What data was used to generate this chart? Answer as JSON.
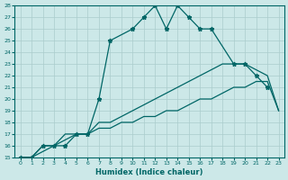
{
  "xlabel": "Humidex (Indice chaleur)",
  "background_color": "#cce8e8",
  "grid_color": "#aacccc",
  "line_color": "#006666",
  "xlim": [
    -0.5,
    23.5
  ],
  "ylim": [
    15,
    28
  ],
  "xticks": [
    0,
    1,
    2,
    3,
    4,
    5,
    6,
    7,
    8,
    9,
    10,
    11,
    12,
    13,
    14,
    15,
    16,
    17,
    18,
    19,
    20,
    21,
    22,
    23
  ],
  "yticks": [
    15,
    16,
    17,
    18,
    19,
    20,
    21,
    22,
    23,
    24,
    25,
    26,
    27,
    28
  ],
  "series": [
    {
      "x": [
        0,
        1,
        2,
        3,
        4,
        5,
        6,
        7,
        8,
        10,
        11,
        12,
        13,
        14,
        15,
        16,
        17,
        19,
        20,
        21,
        22
      ],
      "y": [
        15,
        15,
        16,
        16,
        16,
        17,
        17,
        20,
        25,
        26,
        27,
        28,
        26,
        28,
        27,
        26,
        26,
        23,
        23,
        22,
        21
      ],
      "marker": "*",
      "linestyle": "-",
      "linewidth": 0.9
    },
    {
      "x": [
        0,
        1,
        2,
        3,
        4,
        5,
        6,
        7,
        8,
        9,
        10,
        11,
        12,
        13,
        14,
        15,
        16,
        17,
        18,
        19,
        20,
        21,
        22,
        23
      ],
      "y": [
        15,
        15,
        16,
        16,
        17,
        17,
        17,
        18,
        18,
        18.5,
        19,
        19.5,
        20,
        20.5,
        21,
        21.5,
        22,
        22.5,
        23,
        23,
        23,
        22.5,
        22,
        19
      ],
      "marker": null,
      "linestyle": "-",
      "linewidth": 0.9
    },
    {
      "x": [
        0,
        1,
        2,
        3,
        4,
        5,
        6,
        7,
        8,
        9,
        10,
        11,
        12,
        13,
        14,
        15,
        16,
        17,
        18,
        19,
        20,
        21,
        22,
        23
      ],
      "y": [
        15,
        15,
        15.5,
        16,
        16.5,
        17,
        17,
        17.5,
        17.5,
        18,
        18,
        18.5,
        18.5,
        19,
        19,
        19.5,
        20,
        20,
        20.5,
        21,
        21,
        21.5,
        21.5,
        19
      ],
      "marker": null,
      "linestyle": "-",
      "linewidth": 0.9
    }
  ]
}
